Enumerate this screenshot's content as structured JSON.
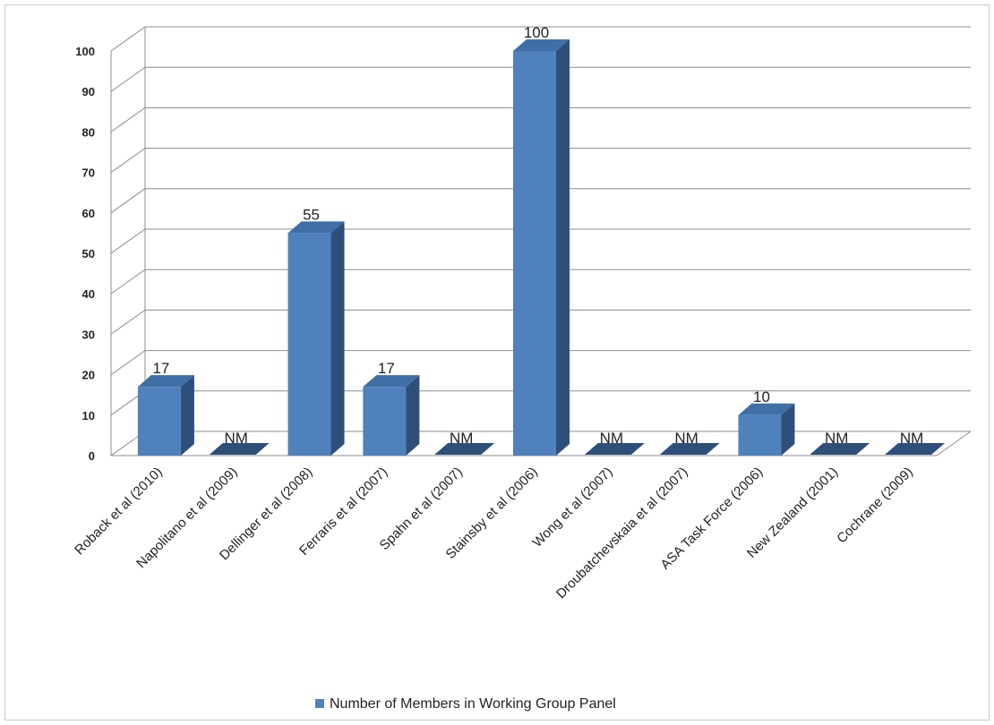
{
  "chart_data": {
    "type": "bar",
    "style": "3d-column",
    "categories": [
      "Roback et al (2010)",
      "Napolitano et al (2009)",
      "Dellinger et al (2008)",
      "Ferraris et al (2007)",
      "Spahn et al (2007)",
      "Stainsby et al (2006)",
      "Wong et al (2007)",
      "Droubatchevskaia et al (2007)",
      "ASA Task Force (2006)",
      "New Zealand (2001)",
      "Cochrane (2009)"
    ],
    "series": [
      {
        "name": "Number of Members in Working Group Panel",
        "values": [
          17,
          null,
          55,
          17,
          null,
          100,
          null,
          null,
          10,
          null,
          null
        ],
        "data_labels": [
          "17",
          "NM",
          "55",
          "17",
          "NM",
          "100",
          "NM",
          "NM",
          "10",
          "NM",
          "NM"
        ],
        "color": "#4F81BD"
      }
    ],
    "ylim": [
      0,
      100
    ],
    "yticks": [
      "0",
      "10",
      "20",
      "30",
      "40",
      "50",
      "60",
      "70",
      "80",
      "90",
      "100"
    ],
    "grid": true,
    "legend_position": "bottom",
    "title": "",
    "xlabel": "",
    "ylabel": ""
  }
}
